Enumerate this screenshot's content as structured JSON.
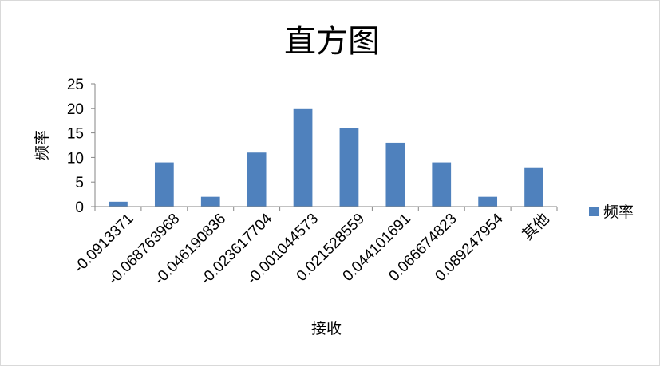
{
  "chart_data": {
    "type": "bar",
    "title": "直方图",
    "xlabel": "接收",
    "ylabel": "频率",
    "categories": [
      "-0.0913371",
      "-0.068763968",
      "-0.046190836",
      "-0.023617704",
      "-0.001044573",
      "0.021528559",
      "0.044101691",
      "0.066674823",
      "0.089247954",
      "其他"
    ],
    "series": [
      {
        "name": "频率",
        "values": [
          1,
          9,
          2,
          11,
          20,
          16,
          13,
          9,
          2,
          8
        ]
      }
    ],
    "ylim": [
      0,
      25
    ],
    "yticks": [
      0,
      5,
      10,
      15,
      20,
      25
    ],
    "grid": false,
    "legend_position": "right",
    "colors": {
      "bar": "#4f81bd",
      "axis": "#868686"
    }
  }
}
